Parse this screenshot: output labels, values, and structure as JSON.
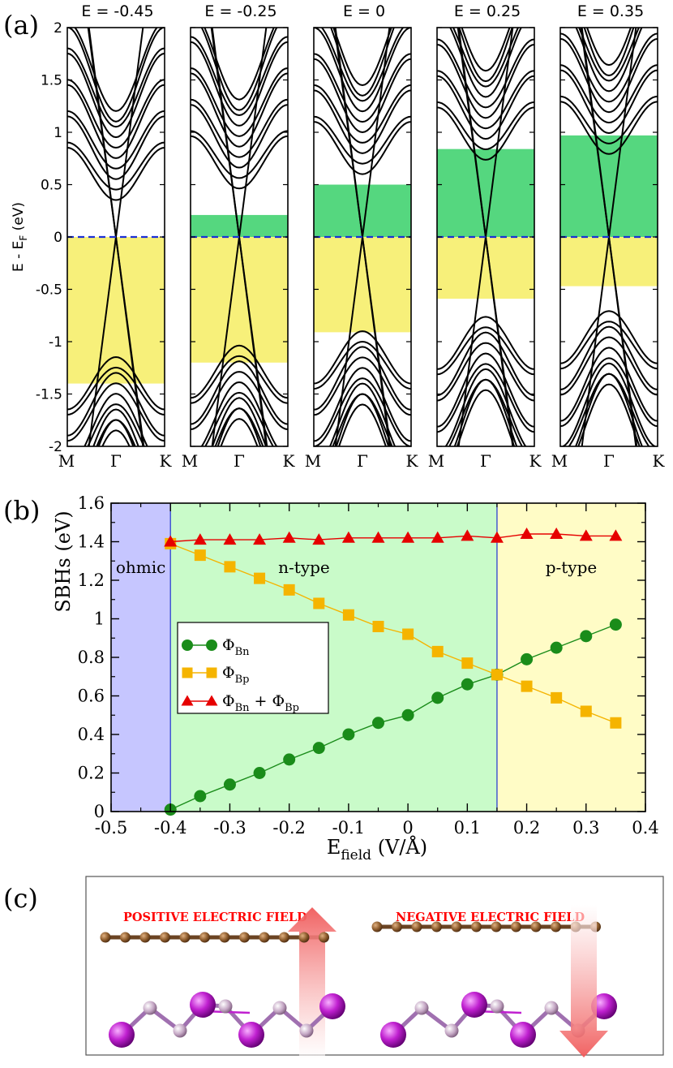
{
  "panel_labels": {
    "a": "(a)",
    "b": "(b)",
    "c": "(c)"
  },
  "chart_data": [
    {
      "type": "line",
      "kind": "band-structure",
      "panels": [
        {
          "title": "E = -0.45",
          "field": -0.45,
          "yellow": [
            -1.4,
            0
          ],
          "green": null
        },
        {
          "title": "E = -0.25",
          "field": -0.25,
          "yellow": [
            -1.2,
            0
          ],
          "green": [
            0,
            0.21
          ]
        },
        {
          "title": "E = 0",
          "field": 0,
          "yellow": [
            -0.91,
            0
          ],
          "green": [
            0,
            0.5
          ]
        },
        {
          "title": "E = 0.25",
          "field": 0.25,
          "yellow": [
            -0.59,
            0
          ],
          "green": [
            0,
            0.84
          ]
        },
        {
          "title": "E = 0.35",
          "field": 0.35,
          "yellow": [
            -0.47,
            0
          ],
          "green": [
            0,
            0.97
          ]
        }
      ],
      "ylabel": "E - E",
      "ylabel_sub": "F",
      "ylabel_unit": " (eV)",
      "ylim": [
        -2,
        2
      ],
      "yticks": [
        "-2",
        "-1.5",
        "-1",
        "-0.5",
        "0",
        "0.5",
        "1",
        "1.5",
        "2"
      ],
      "yticks_values": [
        -2,
        -1.5,
        -1,
        -0.5,
        0,
        0.5,
        1,
        1.5,
        2
      ],
      "xticks": [
        "M",
        "Γ",
        "K"
      ],
      "fermi_level": 0,
      "colors": {
        "bands": "#000000",
        "fermi": "#1b2fd6",
        "yellow": "#f7f07a",
        "green": "#55d77f"
      }
    },
    {
      "type": "line",
      "title": "",
      "xlabel": "E",
      "xlabel_sub": "field",
      "xlabel_unit": " (V/Å)",
      "ylabel": "SBHs (eV)",
      "xlim": [
        -0.5,
        0.4
      ],
      "ylim": [
        0,
        1.6
      ],
      "xticks": [
        "-0.5",
        "-0.4",
        "-0.3",
        "-0.2",
        "-0.1",
        "0",
        "0.1",
        "0.2",
        "0.3",
        "0.4"
      ],
      "xticks_values": [
        -0.5,
        -0.4,
        -0.3,
        -0.2,
        -0.1,
        0,
        0.1,
        0.2,
        0.3,
        0.4
      ],
      "yticks": [
        "0",
        "0.2",
        "0.4",
        "0.6",
        "0.8",
        "1",
        "1.2",
        "1.4",
        "1.6"
      ],
      "yticks_values": [
        0,
        0.2,
        0.4,
        0.6,
        0.8,
        1.0,
        1.2,
        1.4,
        1.6
      ],
      "x": [
        -0.4,
        -0.35,
        -0.3,
        -0.25,
        -0.2,
        -0.15,
        -0.1,
        -0.05,
        0.0,
        0.05,
        0.1,
        0.15,
        0.2,
        0.25,
        0.3,
        0.35
      ],
      "series": [
        {
          "name": "Φ_Bn",
          "color": "#1a8c1a",
          "marker": "circle",
          "values": [
            0.01,
            0.08,
            0.14,
            0.2,
            0.27,
            0.33,
            0.4,
            0.46,
            0.5,
            0.59,
            0.66,
            0.71,
            0.79,
            0.85,
            0.91,
            0.97
          ]
        },
        {
          "name": "Φ_Bp",
          "color": "#f5b400",
          "marker": "square",
          "values": [
            1.39,
            1.33,
            1.27,
            1.21,
            1.15,
            1.08,
            1.02,
            0.96,
            0.92,
            0.83,
            0.77,
            0.71,
            0.65,
            0.59,
            0.52,
            0.46
          ]
        },
        {
          "name": "Φ_Bn + Φ_Bp",
          "color": "#e60000",
          "marker": "triangle",
          "values": [
            1.4,
            1.41,
            1.41,
            1.41,
            1.42,
            1.41,
            1.42,
            1.42,
            1.42,
            1.42,
            1.43,
            1.42,
            1.44,
            1.44,
            1.43,
            1.43
          ]
        }
      ],
      "legend_labels": [
        {
          "main": "Φ",
          "sub": "Bn"
        },
        {
          "main": "Φ",
          "sub": "Bp"
        },
        {
          "main": "Φ",
          "sub": "Bn",
          "mid": " + Φ",
          "sub2": "Bp"
        }
      ],
      "legend": "center-left",
      "regions": [
        {
          "label": "ohmic",
          "from": -0.5,
          "to": -0.4,
          "color": "#c6c6ff"
        },
        {
          "label": "n-type",
          "from": -0.4,
          "to": 0.15,
          "color": "#c9fbc9"
        },
        {
          "label": "p-type",
          "from": 0.15,
          "to": 0.4,
          "color": "#fffcc6"
        }
      ]
    }
  ],
  "panel_c": {
    "positive_label": "POSITIVE  ELECTRIC  FIELD",
    "negative_label": "NEGATIVE  ELECTRIC  FIELD",
    "colors": {
      "label": "#ff0000",
      "graphene": "#8b5a2b",
      "heavy_atom": "#c020d0",
      "light_atom": "#c8a8c8",
      "arrow": "#f08080"
    }
  }
}
